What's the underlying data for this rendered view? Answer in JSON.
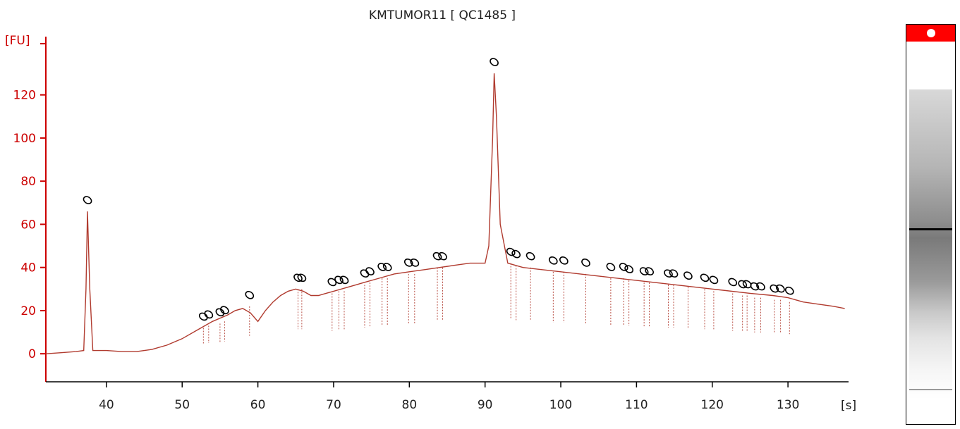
{
  "chart_data": {
    "type": "line",
    "title": "KMTUMOR11  [ QC1485 ]",
    "ylabel": "[FU]",
    "xlabel": "[s]",
    "xlim": [
      32,
      138
    ],
    "ylim": [
      -13,
      147
    ],
    "x_ticks": [
      40,
      50,
      60,
      70,
      80,
      90,
      100,
      110,
      120,
      130
    ],
    "y_ticks": [
      0,
      20,
      40,
      60,
      80,
      100,
      120
    ],
    "colors": {
      "axis": "#cc0000",
      "trace": "#b03a2e",
      "peak_marker": "#000000",
      "gel_marker": "#ff0000"
    },
    "series": [
      {
        "x": [
          32,
          34,
          36,
          37,
          37.3,
          37.5,
          37.8,
          38.2,
          40,
          42,
          44,
          46,
          48,
          50,
          52,
          54,
          56,
          57,
          58,
          59,
          60,
          61,
          62,
          63,
          64,
          65,
          66,
          67,
          68,
          69,
          70,
          72,
          74,
          76,
          78,
          80,
          82,
          84,
          86,
          88,
          89,
          90,
          90.5,
          91,
          91.2,
          91.5,
          92,
          93,
          95,
          100,
          105,
          110,
          115,
          120,
          125,
          128,
          130,
          132,
          134,
          136,
          137.5
        ],
        "y": [
          0,
          0.5,
          1,
          1.5,
          30,
          66,
          30,
          1.5,
          1.5,
          1,
          1,
          2,
          4,
          7,
          11,
          15,
          18,
          20,
          21,
          19,
          15,
          20,
          24,
          27,
          29,
          30,
          29,
          27,
          27,
          28,
          29,
          31,
          33,
          35,
          37,
          38,
          39,
          40,
          41,
          42,
          42,
          42,
          50,
          100,
          130,
          110,
          60,
          42,
          40,
          38,
          36,
          34,
          32,
          30,
          28,
          27,
          26,
          24,
          23,
          22,
          21
        ]
      }
    ],
    "peaks": [
      {
        "x": 37.5,
        "y": 66
      },
      {
        "x": 52.8,
        "y": 12
      },
      {
        "x": 53.5,
        "y": 13
      },
      {
        "x": 55,
        "y": 14
      },
      {
        "x": 55.6,
        "y": 15
      },
      {
        "x": 58.9,
        "y": 22
      },
      {
        "x": 65.3,
        "y": 30
      },
      {
        "x": 65.8,
        "y": 30
      },
      {
        "x": 69.8,
        "y": 28
      },
      {
        "x": 70.7,
        "y": 29
      },
      {
        "x": 71.4,
        "y": 29
      },
      {
        "x": 74.1,
        "y": 32
      },
      {
        "x": 74.8,
        "y": 33
      },
      {
        "x": 76.4,
        "y": 35
      },
      {
        "x": 77.1,
        "y": 35
      },
      {
        "x": 79.9,
        "y": 37
      },
      {
        "x": 80.7,
        "y": 37
      },
      {
        "x": 83.7,
        "y": 40
      },
      {
        "x": 84.4,
        "y": 40
      },
      {
        "x": 91.2,
        "y": 130
      },
      {
        "x": 93.4,
        "y": 42
      },
      {
        "x": 94.1,
        "y": 41
      },
      {
        "x": 96,
        "y": 40
      },
      {
        "x": 99,
        "y": 38
      },
      {
        "x": 100.4,
        "y": 38
      },
      {
        "x": 103.3,
        "y": 37
      },
      {
        "x": 106.6,
        "y": 35
      },
      {
        "x": 108.3,
        "y": 35
      },
      {
        "x": 109,
        "y": 34
      },
      {
        "x": 111,
        "y": 33
      },
      {
        "x": 111.7,
        "y": 33
      },
      {
        "x": 114.2,
        "y": 32
      },
      {
        "x": 114.9,
        "y": 32
      },
      {
        "x": 116.8,
        "y": 31
      },
      {
        "x": 119,
        "y": 30
      },
      {
        "x": 120.2,
        "y": 29
      },
      {
        "x": 122.7,
        "y": 28
      },
      {
        "x": 124,
        "y": 27
      },
      {
        "x": 124.6,
        "y": 27
      },
      {
        "x": 125.6,
        "y": 26
      },
      {
        "x": 126.4,
        "y": 26
      },
      {
        "x": 128.2,
        "y": 25
      },
      {
        "x": 129,
        "y": 25
      },
      {
        "x": 130.2,
        "y": 24
      }
    ]
  }
}
